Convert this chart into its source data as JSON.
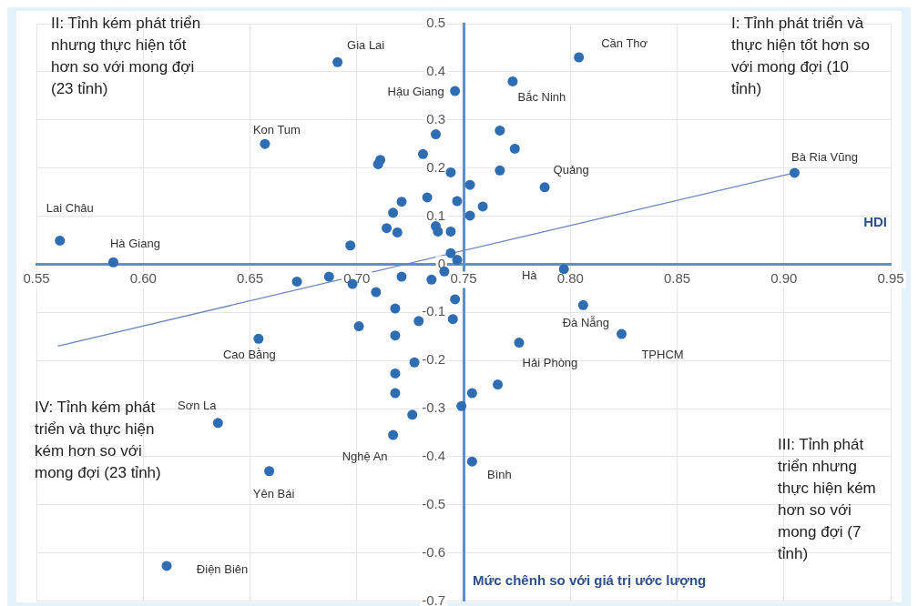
{
  "chart_data": {
    "type": "scatter",
    "xlabel": "HDI",
    "ylabel": "Mức chênh so với giá trị ước lượng",
    "xlim": [
      0.55,
      0.95
    ],
    "ylim": [
      -0.7,
      0.5
    ],
    "xticks": [
      {
        "value": 0.55,
        "label": "0.55"
      },
      {
        "value": 0.6,
        "label": "0.60"
      },
      {
        "value": 0.65,
        "label": "0.65"
      },
      {
        "value": 0.7,
        "label": "0.70"
      },
      {
        "value": 0.75,
        "label": "0.75"
      },
      {
        "value": 0.8,
        "label": "0.80"
      },
      {
        "value": 0.85,
        "label": "0.85"
      },
      {
        "value": 0.9,
        "label": "0.90"
      },
      {
        "value": 0.95,
        "label": "0.95"
      }
    ],
    "yticks": [
      -0.7,
      -0.6,
      -0.5,
      -0.4,
      -0.3,
      -0.2,
      -0.1,
      0,
      0.1,
      0.2,
      0.3,
      0.4,
      0.5
    ],
    "grid": true,
    "series": [
      {
        "marker": "circle",
        "color": "#2e6db4",
        "x": [
          0.561,
          0.586,
          0.691,
          0.657,
          0.804,
          0.773,
          0.746,
          0.905,
          0.788,
          0.797,
          0.806,
          0.824,
          0.776,
          0.654,
          0.635,
          0.659,
          0.611,
          0.717,
          0.754,
          0.737,
          0.731,
          0.711,
          0.71,
          0.744,
          0.753,
          0.767,
          0.774,
          0.767,
          0.733,
          0.747,
          0.721,
          0.759,
          0.717,
          0.753,
          0.714,
          0.719,
          0.737,
          0.738,
          0.744,
          0.697,
          0.744,
          0.747,
          0.672,
          0.687,
          0.698,
          0.709,
          0.721,
          0.735,
          0.741,
          0.746,
          0.718,
          0.729,
          0.745,
          0.701,
          0.718,
          0.727,
          0.718,
          0.718,
          0.754,
          0.766,
          0.749,
          0.726
        ],
        "values": [
          0.049,
          0.004,
          0.42,
          0.25,
          0.43,
          0.38,
          0.36,
          0.19,
          0.16,
          -0.01,
          -0.085,
          -0.145,
          -0.163,
          -0.155,
          -0.33,
          -0.43,
          -0.627,
          -0.355,
          -0.41,
          0.27,
          0.229,
          0.217,
          0.208,
          0.191,
          0.165,
          0.278,
          0.24,
          0.195,
          0.139,
          0.131,
          0.13,
          0.12,
          0.107,
          0.101,
          0.075,
          0.066,
          0.079,
          0.068,
          0.068,
          0.039,
          0.023,
          0.009,
          -0.036,
          -0.026,
          -0.041,
          -0.058,
          -0.026,
          -0.032,
          -0.015,
          -0.073,
          -0.092,
          -0.118,
          -0.114,
          -0.129,
          -0.148,
          -0.204,
          -0.227,
          -0.268,
          -0.268,
          -0.25,
          -0.295,
          -0.313
        ]
      },
      {
        "type": "line",
        "color": "#6a86c0",
        "x": [
          0.56,
          0.905
        ],
        "values": [
          -0.17,
          0.19
        ]
      }
    ],
    "annotations": [
      "II: Tỉnh kém phát triển nhưng thực hiện tốt hơn so với mong đợi (23 tỉnh)",
      "I: Tỉnh phát triển và thực hiện tốt hơn so với mong đợi (10 tỉnh)",
      "IV: Tỉnh kém phát triển và thực hiện kém hơn so với mong đợi (23 tỉnh)",
      "III: Tỉnh phát triển nhưng thực hiện kém hơn so với mong đợi (7 tỉnh)",
      {
        "text": "Lai Châu",
        "x": 0.561,
        "y": 0.049
      },
      {
        "text": "Hà Giang",
        "x": 0.586,
        "y": 0.004
      },
      {
        "text": "Gia Lai",
        "x": 0.691,
        "y": 0.42
      },
      {
        "text": "Kon Tum",
        "x": 0.657,
        "y": 0.25
      },
      {
        "text": "Cần Thơ",
        "x": 0.804,
        "y": 0.43
      },
      {
        "text": "Bắc Ninh",
        "x": 0.773,
        "y": 0.38
      },
      {
        "text": "Hậu Giang",
        "x": 0.746,
        "y": 0.36
      },
      {
        "text": "Bà Ria Vũng",
        "x": 0.905,
        "y": 0.19
      },
      {
        "text": "Quảng",
        "x": 0.788,
        "y": 0.16
      },
      {
        "text": "Hà",
        "x": 0.797,
        "y": -0.01
      },
      {
        "text": "Đà Nẵng",
        "x": 0.806,
        "y": -0.085
      },
      {
        "text": "TPHCM",
        "x": 0.824,
        "y": -0.145
      },
      {
        "text": "Hải Phòng",
        "x": 0.776,
        "y": -0.163
      },
      {
        "text": "Cao Bằng",
        "x": 0.654,
        "y": -0.155
      },
      {
        "text": "Sơn La",
        "x": 0.635,
        "y": -0.33
      },
      {
        "text": "Yên Bái",
        "x": 0.659,
        "y": -0.43
      },
      {
        "text": "Điện Biên",
        "x": 0.611,
        "y": -0.627
      },
      {
        "text": "Nghệ An",
        "x": 0.717,
        "y": -0.355
      },
      {
        "text": "Bình",
        "x": 0.754,
        "y": -0.41
      }
    ]
  }
}
